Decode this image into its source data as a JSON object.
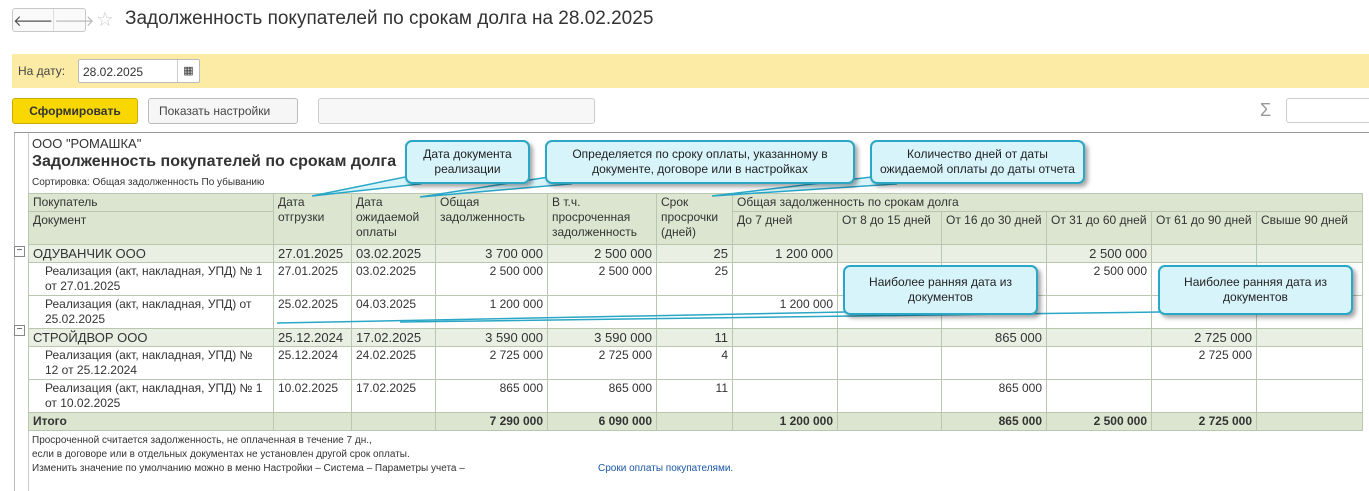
{
  "window": {
    "title": "Задолженность покупателей по срокам долга на 28.02.2025",
    "back_icon": "arrow-left",
    "forward_icon": "arrow-right",
    "favorite_icon": "star"
  },
  "filter": {
    "label": "На дату:",
    "date": "28.02.2025",
    "calendar_icon": "calendar"
  },
  "toolbar": {
    "generate": "Сформировать",
    "settings": "Показать настройки",
    "sum_icon": "sigma"
  },
  "report": {
    "org": "ООО \"РОМАШКА\"",
    "title": "Задолженность покупателей по срокам долга",
    "sort": "Сортировка: Общая задолженность По убыванию",
    "header": {
      "buyer": "Покупатель",
      "document": "Документ",
      "ship_date": "Дата отгрузки",
      "due_date": "Дата ожидаемой оплаты",
      "total": "Общая задолженность",
      "overdue": "В т.ч. просроченная задолженность",
      "days": "Срок просрочки (дней)",
      "aging_group": "Общая задолженность по срокам долга",
      "buckets": [
        "До 7 дней",
        "От 8 до 15 дней",
        "От 16 до 30 дней",
        "От 31 до 60 дней",
        "От 61 до 90 дней",
        "Свыше 90 дней"
      ]
    },
    "groups": [
      {
        "name": "ОДУВАНЧИК ООО",
        "ship": "27.01.2025",
        "due": "03.02.2025",
        "total": "3 700 000",
        "overdue": "2 500 000",
        "days": "25",
        "b": [
          "1 200 000",
          "",
          "",
          "2 500 000",
          "",
          ""
        ],
        "docs": [
          {
            "name": "Реализация (акт, накладная, УПД) № 1 от 27.01.2025",
            "ship": "27.01.2025",
            "due": "03.02.2025",
            "total": "2 500 000",
            "overdue": "2 500 000",
            "days": "25",
            "b": [
              "",
              "",
              "",
              "2 500 000",
              "",
              ""
            ]
          },
          {
            "name": "Реализация (акт, накладная, УПД) от 25.02.2025",
            "ship": "25.02.2025",
            "due": "04.03.2025",
            "total": "1 200 000",
            "overdue": "",
            "days": "",
            "b": [
              "1 200 000",
              "",
              "",
              "",
              "",
              ""
            ]
          }
        ]
      },
      {
        "name": "СТРОЙДВОР ООО",
        "ship": "25.12.2024",
        "due": "17.02.2025",
        "total": "3 590 000",
        "overdue": "3 590 000",
        "days": "11",
        "b": [
          "",
          "",
          "865 000",
          "",
          "2 725 000",
          ""
        ],
        "docs": [
          {
            "name": "Реализация (акт, накладная, УПД) № 12 от 25.12.2024",
            "ship": "25.12.2024",
            "due": "24.02.2025",
            "total": "2 725 000",
            "overdue": "2 725 000",
            "days": "4",
            "b": [
              "",
              "",
              "",
              "",
              "2 725 000",
              ""
            ]
          },
          {
            "name": "Реализация (акт, накладная, УПД) № 1 от 10.02.2025",
            "ship": "10.02.2025",
            "due": "17.02.2025",
            "total": "865 000",
            "overdue": "865 000",
            "days": "11",
            "b": [
              "",
              "",
              "865 000",
              "",
              "",
              ""
            ]
          }
        ]
      }
    ],
    "totals": {
      "label": "Итого",
      "total": "7 290 000",
      "overdue": "6 090 000",
      "b": [
        "1 200 000",
        "",
        "865 000",
        "2 500 000",
        "2 725 000",
        ""
      ]
    },
    "notes": [
      "Просроченной считается задолженность, не оплаченная в течение 7 дн.,",
      "если в договоре или в отдельных документах не установлен другой срок оплаты.",
      "Изменить значение по умолчанию можно в меню Настройки – Система – Параметры учета  –"
    ],
    "link": "Сроки оплаты покупателями."
  },
  "callouts": [
    "Дата документа реализации",
    "Определяется по сроку оплаты, указанному в документе, договоре или в настройках",
    "Количество дней от даты ожидаемой оплаты до даты отчета",
    "Наиболее ранняя дата из документов",
    "Наиболее ранняя дата из документов"
  ],
  "colors": {
    "accent": "#f8d800",
    "filter_bg": "#fbeba5",
    "header_bg": "#dbe5cf",
    "callout_bg": "#d8f4fb",
    "callout_border": "#2aa6c6"
  }
}
